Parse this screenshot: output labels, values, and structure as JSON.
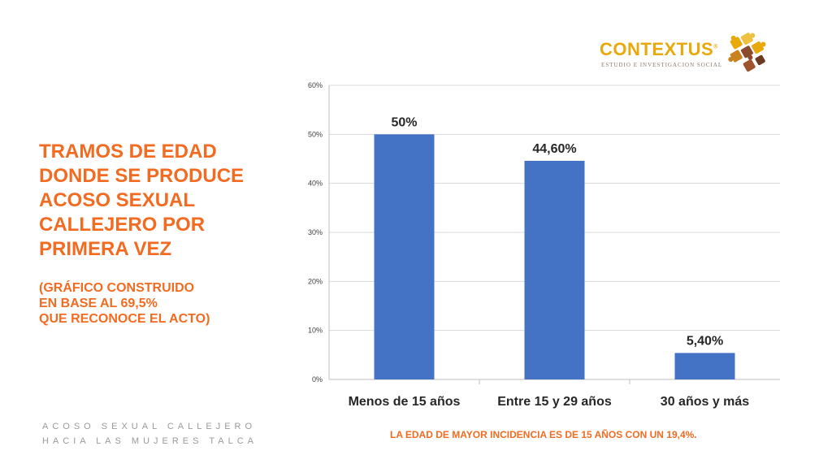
{
  "slide": {
    "title_lines": [
      "TRAMOS DE EDAD",
      "DONDE SE PRODUCE",
      "ACOSO SEXUAL",
      "CALLEJERO POR",
      "PRIMERA VEZ"
    ],
    "subtitle_lines": [
      "(GRÁFICO CONSTRUIDO",
      "EN BASE AL 69,5%",
      "QUE RECONOCE EL ACTO)"
    ],
    "footer_left": [
      "ACOSO SEXUAL CALLEJERO",
      "HACIA LAS MUJERES TALCA"
    ],
    "footer_note": "LA EDAD DE MAYOR INCIDENCIA ES  DE 15 AÑOS CON UN 19,4%."
  },
  "logo": {
    "word": "CONTEXTUS",
    "registered": "®",
    "tagline": "ESTUDIO E INVESTIGACION SOCIAL"
  },
  "colors": {
    "accent": "#F26B21",
    "bar": "#4472C4",
    "logo_gold": "#E8A90C",
    "logo_brown": "#8B4A2B"
  },
  "chart_data": {
    "type": "bar",
    "title": "",
    "xlabel": "",
    "ylabel": "",
    "categories": [
      "Menos de 15 años",
      "Entre 15 y 29 años",
      "30 años y más"
    ],
    "values": [
      50,
      44.6,
      5.4
    ],
    "data_labels": [
      "50%",
      "44,60%",
      "5,40%"
    ],
    "ylim": [
      0,
      60
    ],
    "yticks": [
      0,
      10,
      20,
      30,
      40,
      50,
      60
    ],
    "ytick_labels": [
      "0%",
      "10%",
      "20%",
      "30%",
      "40%",
      "50%",
      "60%"
    ],
    "grid": true,
    "legend": "none"
  }
}
